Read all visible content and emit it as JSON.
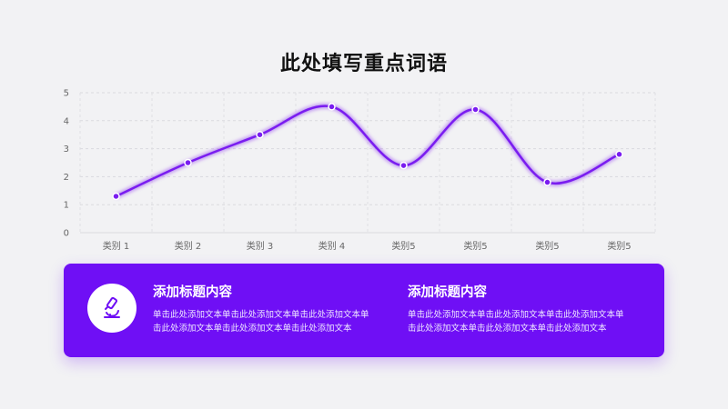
{
  "title": "此处填写重点词语",
  "chart_data": {
    "type": "line",
    "smooth": true,
    "categories": [
      "类别 1",
      "类别 2",
      "类别 3",
      "类别 4",
      "类别5",
      "类别5",
      "类别5",
      "类别5"
    ],
    "series": [
      {
        "values": [
          1.3,
          2.5,
          3.5,
          4.5,
          2.4,
          4.4,
          1.8,
          2.8
        ]
      }
    ],
    "yticks": [
      "0",
      "1",
      "2",
      "3",
      "4",
      "5"
    ],
    "ylim": [
      0,
      5
    ],
    "grid": true,
    "color": "#7a1cf0"
  },
  "panel": {
    "color": "#6f0ff5",
    "icon": "microscope-icon",
    "blocks": [
      {
        "heading": "添加标题内容",
        "line1": "单击此处添加文本单击此处添加文本单击此处添加文本单",
        "line2": "击此处添加文本单击此处添加文本单击此处添加文本"
      },
      {
        "heading": "添加标题内容",
        "line1": "单击此处添加文本单击此处添加文本单击此处添加文本单",
        "line2": "击此处添加文本单击此处添加文本单击此处添加文本"
      }
    ]
  }
}
